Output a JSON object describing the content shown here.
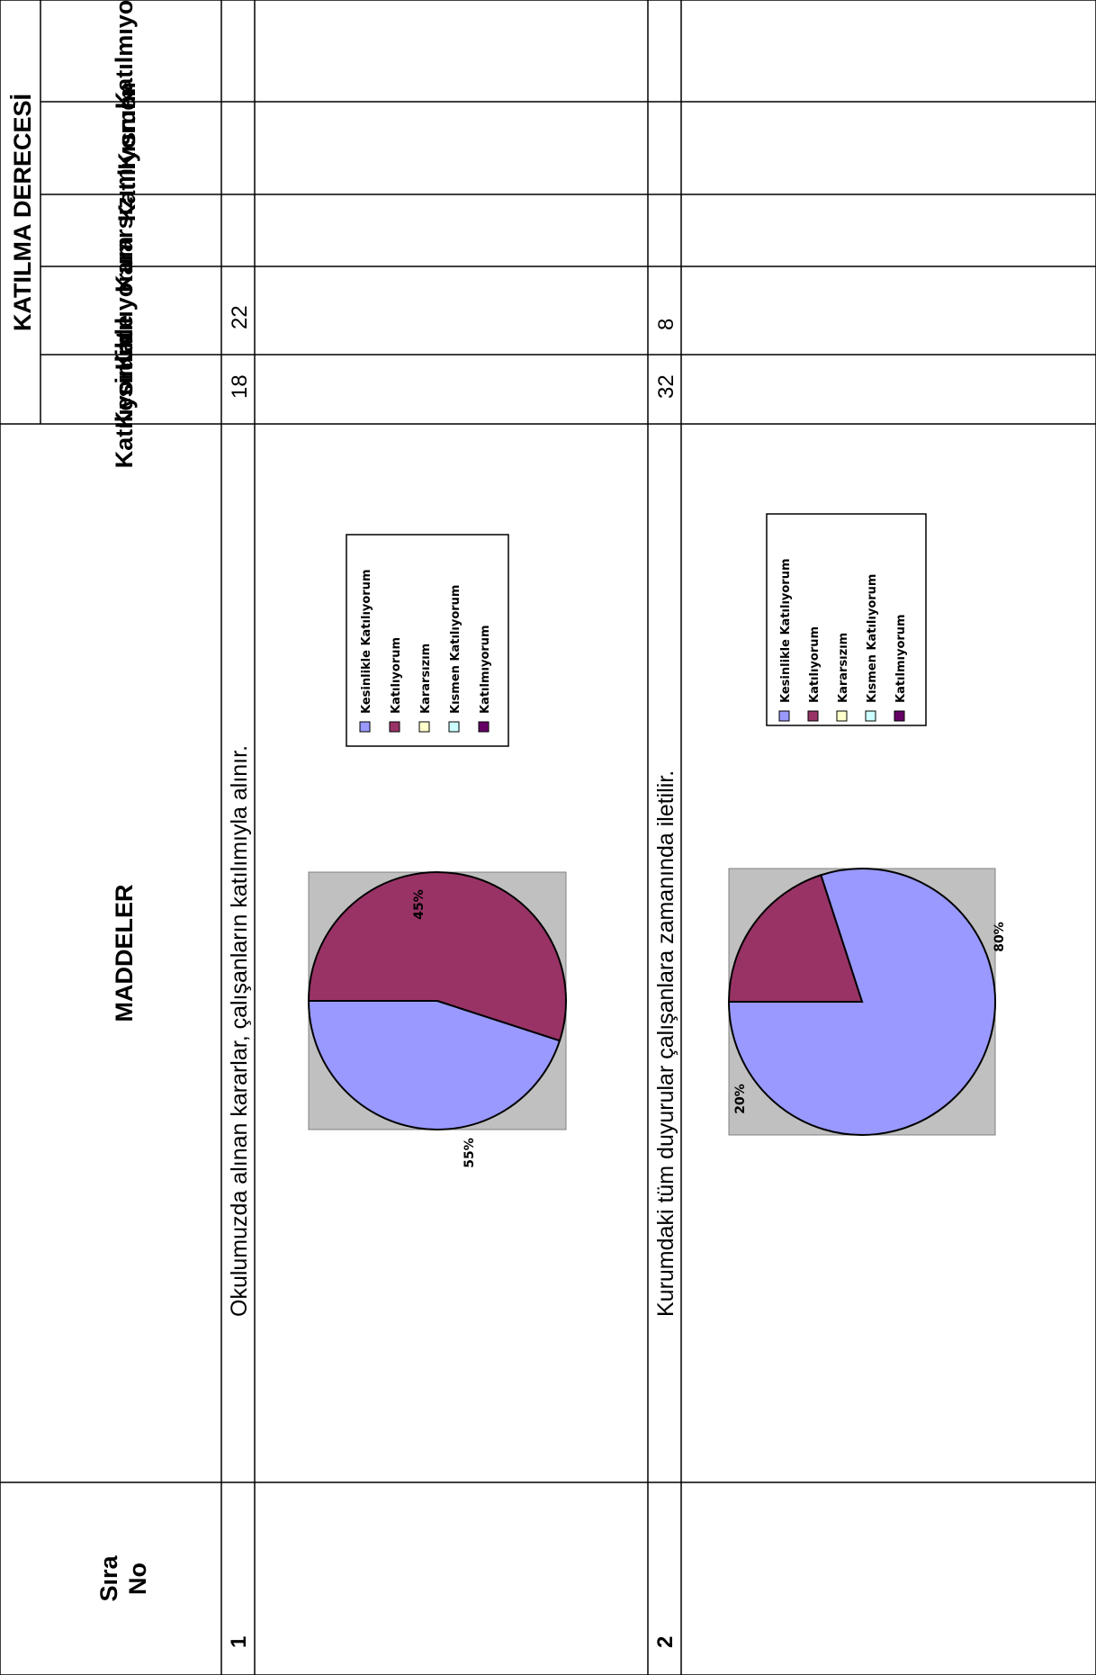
{
  "headers": {
    "group_title": "KATILMA DERECESİ",
    "maddeler": "MADDELER",
    "sira_no": [
      "Sıra",
      "No"
    ],
    "levels": [
      {
        "lines": [
          "Katılmıyorum"
        ]
      },
      {
        "lines": [
          "Kısmen",
          "Katılıyorum"
        ]
      },
      {
        "lines": [
          "Kararsızım"
        ]
      },
      {
        "lines": [
          "Katılıyorum"
        ]
      },
      {
        "lines": [
          "Kesinlikle",
          "Katılıyorum"
        ]
      }
    ]
  },
  "rows": [
    {
      "no": "1",
      "statement": "Okulumuzda alınan kararlar, çalışanların katılımıyla alınır.",
      "counts": {
        "katiliyorum": "22",
        "kesinlikle": "18"
      }
    },
    {
      "no": "2",
      "statement": "Kurumdaki tüm duyurular çalışanlara zamanında iletilir.",
      "counts": {
        "katiliyorum": "8",
        "kesinlikle": "32"
      }
    }
  ],
  "legend": {
    "items": [
      "Kesinlikle Katılıyorum",
      "Katılıyorum",
      "Kararsızım",
      "Kısmen Katılıyorum",
      "Katılmıyorum"
    ],
    "colors": [
      "#9999ff",
      "#993366",
      "#ffffcc",
      "#ccffff",
      "#660066"
    ]
  },
  "chart_data": [
    {
      "type": "pie",
      "categories": [
        "Kesinlikle Katılıyorum",
        "Katılıyorum"
      ],
      "values": [
        45,
        55
      ],
      "labels": [
        "45%",
        "55%"
      ],
      "colors": [
        "#9999ff",
        "#993366"
      ]
    },
    {
      "type": "pie",
      "categories": [
        "Kesinlikle Katılıyorum",
        "Katılıyorum"
      ],
      "values": [
        80,
        20
      ],
      "labels": [
        "80%",
        "20%"
      ],
      "colors": [
        "#9999ff",
        "#993366"
      ]
    }
  ]
}
